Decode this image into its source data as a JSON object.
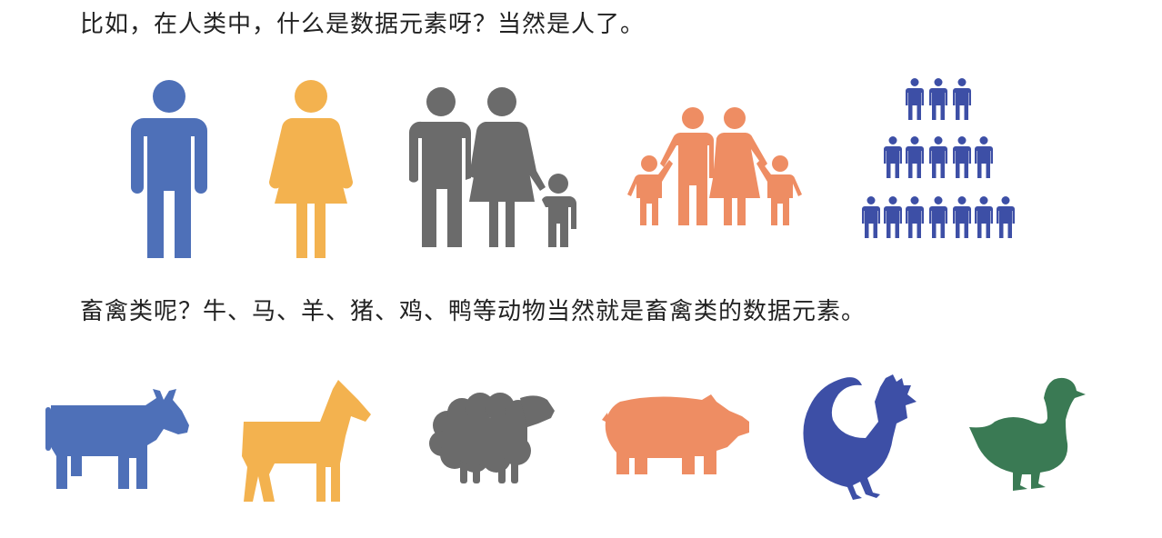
{
  "text": {
    "line1": "比如，在人类中，什么是数据元素呀？当然是人了。",
    "line2": "畜禽类呢？牛、马、羊、猪、鸡、鸭等动物当然就是畜禽类的数据元素。"
  },
  "colors": {
    "blue": "#4e70b8",
    "yellow": "#f3b24f",
    "gray": "#6b6b6b",
    "orange": "#ee8d63",
    "navy": "#3d4fa6",
    "green": "#3a7a54"
  },
  "people_icons": [
    "man-icon",
    "woman-icon",
    "couple-with-child-icon",
    "family-icon",
    "crowd-icon"
  ],
  "animal_icons": [
    "cow-icon",
    "horse-icon",
    "sheep-icon",
    "pig-icon",
    "rooster-icon",
    "duck-icon"
  ]
}
